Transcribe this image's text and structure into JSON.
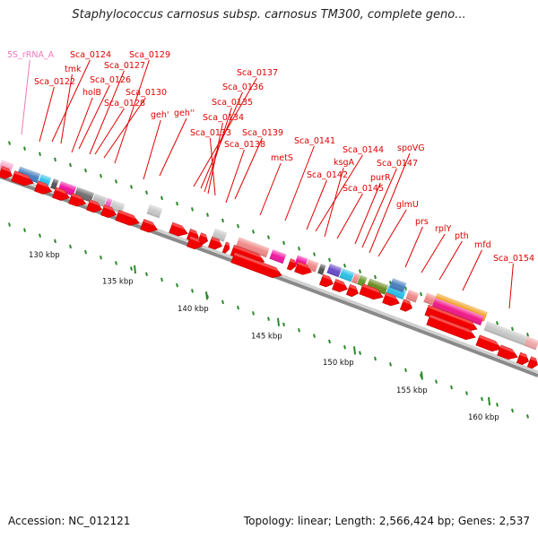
{
  "title": "Staphylococcus carnosus subsp. carnosus TM300, complete geno...",
  "footer": {
    "accession": "Accession: NC_012121",
    "summary": "Topology: linear; Length: 2,566,424 bp; Genes: 2,537"
  },
  "colors": {
    "gene_arrow": "#f00000",
    "label": "#e00000",
    "rrna_label": "#ef79b9",
    "backbone": "#8a8a8a",
    "tick": "#2a8a2a"
  },
  "gene_labels": [
    {
      "id": "5S_rRNA_A",
      "type": "rRNA"
    },
    {
      "id": "Sca_0124"
    },
    {
      "id": "Sca_0129"
    },
    {
      "id": "tmk"
    },
    {
      "id": "Sca_0127"
    },
    {
      "id": "Sca_0122"
    },
    {
      "id": "Sca_0126"
    },
    {
      "id": "holB"
    },
    {
      "id": "Sca_0130"
    },
    {
      "id": "Sca_0128"
    },
    {
      "id": "Sca_0137"
    },
    {
      "id": "Sca_0136"
    },
    {
      "id": "Sca_0135"
    },
    {
      "id": "geh'"
    },
    {
      "id": "geh''"
    },
    {
      "id": "Sca_0134"
    },
    {
      "id": "Sca_0133"
    },
    {
      "id": "Sca_0139"
    },
    {
      "id": "Sca_0138"
    },
    {
      "id": "Sca_0141"
    },
    {
      "id": "metS"
    },
    {
      "id": "Sca_0144"
    },
    {
      "id": "spoVG"
    },
    {
      "id": "ksgA"
    },
    {
      "id": "Sca_0147"
    },
    {
      "id": "Sca_0142"
    },
    {
      "id": "purR"
    },
    {
      "id": "Sca_0145"
    },
    {
      "id": "glmU"
    },
    {
      "id": "prs"
    },
    {
      "id": "rplY"
    },
    {
      "id": "pth"
    },
    {
      "id": "mfd"
    },
    {
      "id": "Sca_0154"
    }
  ],
  "scale_labels": [
    "130 kbp",
    "135 kbp",
    "140 kbp",
    "145 kbp",
    "150 kbp",
    "155 kbp",
    "160 kbp"
  ]
}
